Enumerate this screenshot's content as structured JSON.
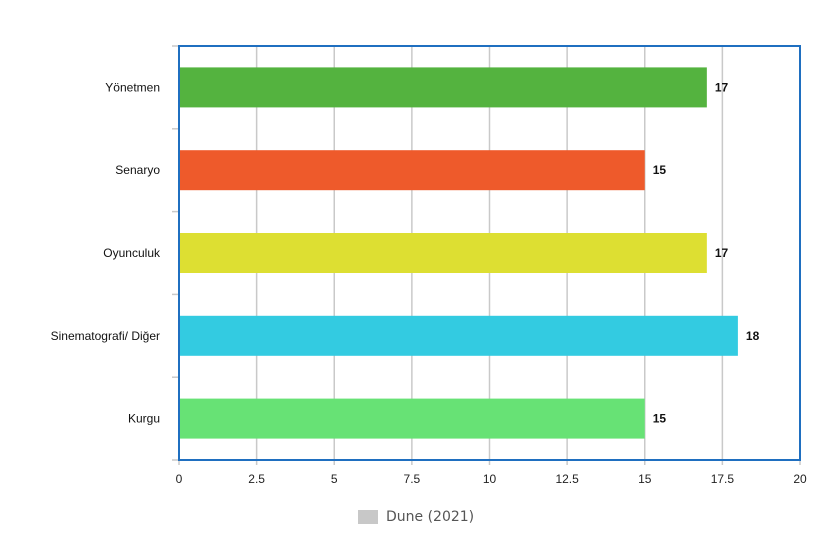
{
  "chart_data": {
    "type": "bar",
    "orientation": "horizontal",
    "title": "",
    "xlabel": "",
    "ylabel": "",
    "categories": [
      "Yönetmen",
      "Senaryo",
      "Oyunculuk",
      "Sinematografi/ Diğer",
      "Kurgu"
    ],
    "values": [
      17,
      15,
      17,
      18,
      15
    ],
    "bar_colors": [
      "#54b33f",
      "#ee5a2b",
      "#dddf32",
      "#33cbe1",
      "#67e275"
    ],
    "xlim": [
      0,
      20
    ],
    "xticks": [
      "0",
      "2.5",
      "5",
      "7.5",
      "10",
      "12.5",
      "15",
      "17.5",
      "20"
    ],
    "grid": true,
    "legend_placement": "bottom",
    "series": [
      {
        "name": "Dune (2021)",
        "values": [
          17,
          15,
          17,
          18,
          15
        ]
      }
    ],
    "plot_border_color": "#1f6fc0",
    "grid_color": "#c9c9c9"
  }
}
